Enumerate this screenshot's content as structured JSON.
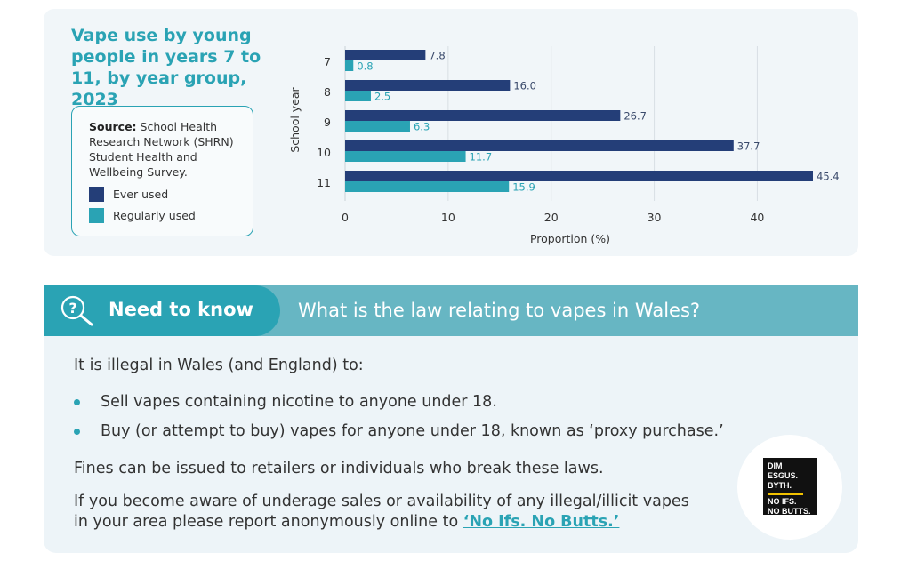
{
  "chart_title": "Vape use by young people in years 7 to 11, by year group, 2023",
  "source": {
    "label": "Source:",
    "text": "School Health Research Network (SHRN) Student Health and Wellbeing Survey."
  },
  "legend": [
    {
      "label": "Ever used",
      "color": "#243e78"
    },
    {
      "label": "Regularly used",
      "color": "#2aa3b4"
    }
  ],
  "chart_data": {
    "type": "bar",
    "orientation": "horizontal",
    "categories": [
      "7",
      "8",
      "9",
      "10",
      "11"
    ],
    "series": [
      {
        "name": "Ever used",
        "color": "#243e78",
        "values": [
          7.8,
          16.0,
          26.7,
          37.7,
          45.4
        ]
      },
      {
        "name": "Regularly used",
        "color": "#2aa3b4",
        "values": [
          0.8,
          2.5,
          6.3,
          11.7,
          15.9
        ]
      }
    ],
    "xlabel": "Proportion (%)",
    "ylabel": "School year",
    "xlim": [
      0,
      45.4
    ],
    "xticks": [
      "0",
      "10",
      "20",
      "30",
      "40"
    ],
    "grid": true
  },
  "info": {
    "tab_label": "Need to know",
    "icon": "question-magnifier-icon",
    "question": "What is the law relating to vapes in Wales?",
    "intro": "It is illegal in Wales (and England) to:",
    "bullets": [
      "Sell vapes containing nicotine to anyone under 18.",
      "Buy (or attempt to buy) vapes for anyone under 18, known as ‘proxy purchase.’"
    ],
    "fines": "Fines can be issued to retailers or individuals who break these laws.",
    "report_text": "If you become aware of underage sales or availability of any illegal/illicit vapes in your area please report anonymously online to ",
    "report_link": "‘No Ifs. No Butts.’",
    "logo_lines": [
      "DIM ESGUS.",
      "BYTH.",
      "NO IFS.",
      "NO BUTTS."
    ]
  }
}
